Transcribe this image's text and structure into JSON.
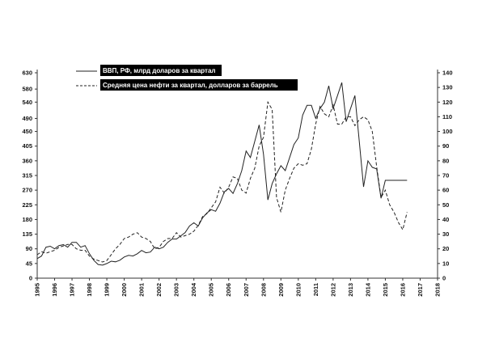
{
  "chart_data": {
    "type": "line",
    "title": "",
    "xlabel": "",
    "ylabel": "",
    "y2label": "",
    "xlim": [
      1995,
      2018
    ],
    "ylim": [
      0,
      630
    ],
    "y2lim": [
      0,
      140
    ],
    "x_ticks": [
      1995,
      1996,
      1997,
      1998,
      1999,
      2000,
      2001,
      2002,
      2003,
      2004,
      2005,
      2006,
      2007,
      2008,
      2009,
      2010,
      2011,
      2012,
      2013,
      2014,
      2015,
      2016,
      2017,
      2018
    ],
    "y_ticks": [
      0,
      45,
      90,
      135,
      180,
      225,
      270,
      315,
      360,
      405,
      450,
      490,
      540,
      580,
      630
    ],
    "y2_ticks": [
      0,
      10,
      20,
      30,
      40,
      50,
      60,
      70,
      80,
      90,
      100,
      110,
      120,
      130,
      140
    ],
    "grid": false,
    "legend_position": "top-center",
    "series": [
      {
        "name": "ВВП, РФ, млрд доларов за квартал",
        "axis": "left",
        "style": "solid",
        "color": "#222222",
        "x": [
          1995.0,
          1995.25,
          1995.5,
          1995.75,
          1996.0,
          1996.25,
          1996.5,
          1996.75,
          1997.0,
          1997.25,
          1997.5,
          1997.75,
          1998.0,
          1998.25,
          1998.5,
          1998.75,
          1999.0,
          1999.25,
          1999.5,
          1999.75,
          2000.0,
          2000.25,
          2000.5,
          2000.75,
          2001.0,
          2001.25,
          2001.5,
          2001.75,
          2002.0,
          2002.25,
          2002.5,
          2002.75,
          2003.0,
          2003.25,
          2003.5,
          2003.75,
          2004.0,
          2004.25,
          2004.5,
          2004.75,
          2005.0,
          2005.25,
          2005.5,
          2005.75,
          2006.0,
          2006.25,
          2006.5,
          2006.75,
          2007.0,
          2007.25,
          2007.5,
          2007.75,
          2008.0,
          2008.25,
          2008.5,
          2008.75,
          2009.0,
          2009.25,
          2009.5,
          2009.75,
          2010.0,
          2010.25,
          2010.5,
          2010.75,
          2011.0,
          2011.25,
          2011.5,
          2011.75,
          2012.0,
          2012.25,
          2012.5,
          2012.75,
          2013.0,
          2013.25,
          2013.5,
          2013.75,
          2014.0,
          2014.25,
          2014.5,
          2014.75,
          2015.0,
          2015.25,
          2015.5,
          2015.75,
          2016.0,
          2016.25
        ],
        "values": [
          60,
          68,
          95,
          98,
          90,
          100,
          103,
          95,
          110,
          110,
          95,
          100,
          75,
          55,
          42,
          40,
          45,
          52,
          50,
          55,
          65,
          70,
          68,
          75,
          85,
          78,
          80,
          95,
          90,
          95,
          110,
          120,
          120,
          130,
          140,
          160,
          170,
          160,
          185,
          200,
          210,
          205,
          230,
          265,
          275,
          260,
          290,
          330,
          390,
          370,
          420,
          470,
          380,
          240,
          290,
          320,
          345,
          330,
          370,
          410,
          430,
          500,
          530,
          530,
          490,
          520,
          540,
          590,
          520,
          560,
          600,
          480,
          520,
          560,
          420,
          280,
          360,
          340,
          335,
          245,
          300,
          300,
          300,
          300,
          300,
          300
        ]
      },
      {
        "name": "Средняя цена нефти за квартал, долларов за баррель",
        "axis": "right",
        "style": "dashed",
        "color": "#222222",
        "x": [
          1995.0,
          1995.25,
          1995.5,
          1995.75,
          1996.0,
          1996.25,
          1996.5,
          1996.75,
          1997.0,
          1997.25,
          1997.5,
          1997.75,
          1998.0,
          1998.25,
          1998.5,
          1998.75,
          1999.0,
          1999.25,
          1999.5,
          1999.75,
          2000.0,
          2000.25,
          2000.5,
          2000.75,
          2001.0,
          2001.25,
          2001.5,
          2001.75,
          2002.0,
          2002.25,
          2002.5,
          2002.75,
          2003.0,
          2003.25,
          2003.5,
          2003.75,
          2004.0,
          2004.25,
          2004.5,
          2004.75,
          2005.0,
          2005.25,
          2005.5,
          2005.75,
          2006.0,
          2006.25,
          2006.5,
          2006.75,
          2007.0,
          2007.25,
          2007.5,
          2007.75,
          2008.0,
          2008.25,
          2008.5,
          2008.75,
          2009.0,
          2009.25,
          2009.5,
          2009.75,
          2010.0,
          2010.25,
          2010.5,
          2010.75,
          2011.0,
          2011.25,
          2011.5,
          2011.75,
          2012.0,
          2012.25,
          2012.5,
          2012.75,
          2013.0,
          2013.25,
          2013.5,
          2013.75,
          2014.0,
          2014.25,
          2014.5,
          2014.75,
          2015.0,
          2015.25,
          2015.5,
          2015.75,
          2016.0,
          2016.25
        ],
        "values": [
          16,
          18,
          17,
          18,
          19,
          21,
          22,
          23,
          23,
          20,
          19,
          19,
          15,
          13,
          12,
          11,
          12,
          16,
          20,
          23,
          27,
          28,
          30,
          31,
          28,
          27,
          25,
          20,
          21,
          25,
          27,
          27,
          31,
          28,
          29,
          30,
          32,
          36,
          42,
          44,
          48,
          52,
          62,
          58,
          62,
          69,
          68,
          60,
          58,
          68,
          75,
          90,
          96,
          120,
          115,
          55,
          45,
          60,
          68,
          75,
          78,
          77,
          78,
          88,
          105,
          117,
          112,
          110,
          118,
          105,
          105,
          110,
          110,
          104,
          108,
          110,
          108,
          100,
          76,
          55,
          60,
          50,
          45,
          38,
          33,
          45
        ]
      }
    ]
  }
}
